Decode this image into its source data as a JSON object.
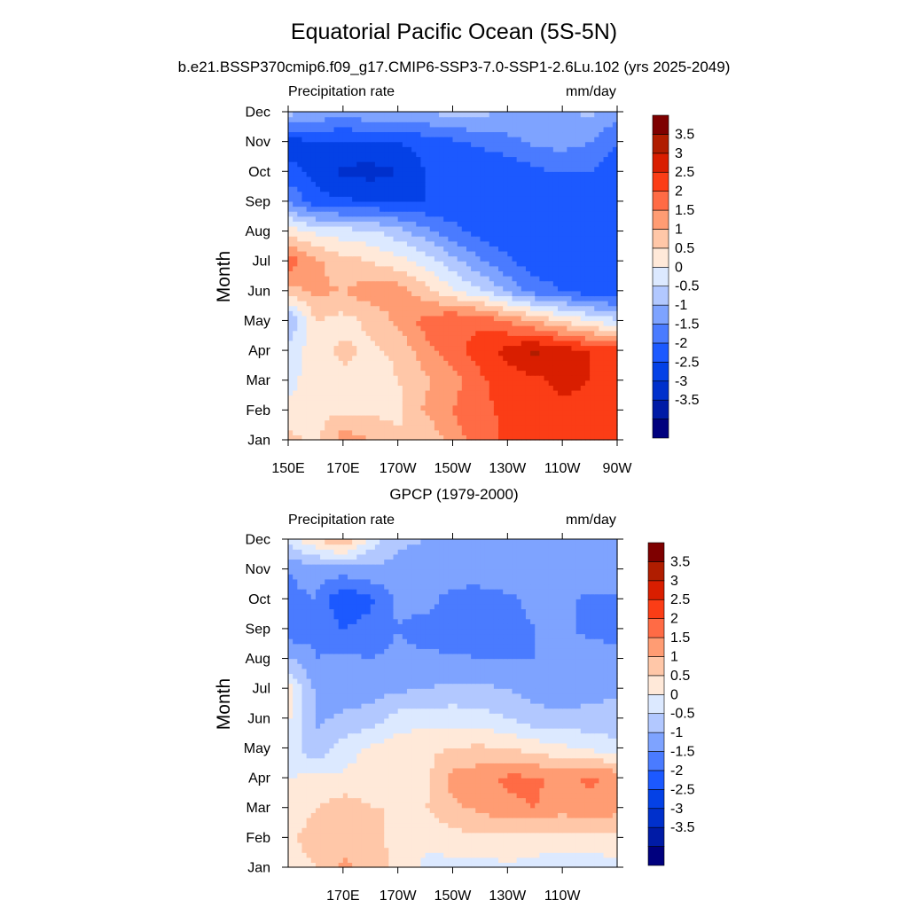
{
  "figure": {
    "title": "Equatorial Pacific Ocean (5S-5N)",
    "subtitle": "b.e21.BSSP370cmip6.f09_g17.CMIP6-SSP3-7.0-SSP1-2.6Lu.102 (yrs 2025-2049)",
    "lower_title": "GPCP (1979-2000)"
  },
  "colors": {
    "levels": [
      "#00007e",
      "#001ba6",
      "#0030cc",
      "#0441e6",
      "#1c59ff",
      "#4a7bff",
      "#7ea3ff",
      "#b2c8ff",
      "#dce9ff",
      "#ffe9d9",
      "#ffc7a8",
      "#ff9c73",
      "#ff6b45",
      "#fb3d16",
      "#d91e00",
      "#b01d00",
      "#7e0000"
    ]
  },
  "chart_data": [
    {
      "type": "heatmap",
      "panel": "top",
      "left_label": "Precipitation rate",
      "right_label": "mm/day",
      "ylabel": "Month",
      "x": [
        150,
        160,
        170,
        180,
        190,
        200,
        210,
        220,
        230,
        240,
        250,
        260,
        270
      ],
      "x_ticks": [
        150,
        170,
        190,
        210,
        230,
        250,
        270
      ],
      "x_tick_labels": [
        "150E",
        "170E",
        "170W",
        "150W",
        "130W",
        "110W",
        "90W"
      ],
      "y_tick_labels": [
        "Jan",
        "Feb",
        "Mar",
        "Apr",
        "May",
        "Jun",
        "Jul",
        "Aug",
        "Sep",
        "Oct",
        "Nov",
        "Dec"
      ],
      "colorbar_labels": [
        "3.5",
        "3",
        "2.5",
        "2",
        "1.5",
        "1",
        "0.5",
        "0",
        "-0.5",
        "-1",
        "-1.5",
        "-2",
        "-2.5",
        "-3",
        "-3.5"
      ],
      "z": [
        [
          1.2,
          0.8,
          1.8,
          1.5,
          1.2,
          1.0,
          1.8,
          2.2,
          2.6,
          2.7,
          2.9,
          3.0,
          2.8
        ],
        [
          0.6,
          0.9,
          0.9,
          0.9,
          0.8,
          1.6,
          2.0,
          2.4,
          2.6,
          2.8,
          2.9,
          2.9,
          2.8
        ],
        [
          0.3,
          0.8,
          0.9,
          0.7,
          1.0,
          1.4,
          1.8,
          2.4,
          2.7,
          2.9,
          3.1,
          3.0,
          2.9
        ],
        [
          0.2,
          0.8,
          1.1,
          0.9,
          1.1,
          1.8,
          2.3,
          2.7,
          3.2,
          3.6,
          3.3,
          3.0,
          2.8
        ],
        [
          -0.6,
          1.0,
          0.8,
          1.1,
          1.6,
          2.2,
          2.5,
          2.4,
          2.0,
          1.5,
          1.0,
          0.5,
          0.1
        ],
        [
          1.3,
          1.6,
          1.5,
          1.8,
          1.8,
          1.2,
          0.6,
          0.1,
          -0.6,
          -1.2,
          -1.5,
          -1.8,
          -1.9
        ],
        [
          2.3,
          1.6,
          1.2,
          1.0,
          0.7,
          0.3,
          -0.3,
          -0.9,
          -1.4,
          -1.8,
          -1.9,
          -1.9,
          -1.9
        ],
        [
          0.8,
          0.4,
          0.2,
          0.1,
          -0.3,
          -0.8,
          -1.3,
          -1.7,
          -1.9,
          -1.9,
          -1.9,
          -1.9,
          -1.9
        ],
        [
          -1.0,
          -1.8,
          -1.9,
          -2.0,
          -2.0,
          -2.0,
          -2.0,
          -1.9,
          -1.9,
          -1.9,
          -1.9,
          -1.9,
          -1.9
        ],
        [
          -1.8,
          -2.2,
          -2.6,
          -2.7,
          -2.5,
          -2.0,
          -2.0,
          -2.0,
          -2.0,
          -1.6,
          -1.5,
          -1.5,
          -2.0
        ],
        [
          -2.3,
          -2.0,
          -2.1,
          -2.0,
          -2.0,
          -1.8,
          -1.6,
          -1.4,
          -1.1,
          -0.9,
          -0.8,
          -1.0,
          -1.5
        ],
        [
          -0.3,
          -0.6,
          -0.8,
          -0.6,
          -0.5,
          -0.5,
          -0.3,
          -0.3,
          -0.7,
          -1.0,
          -0.6,
          -0.4,
          -0.8
        ]
      ]
    },
    {
      "type": "heatmap",
      "panel": "bottom",
      "left_label": "Precipitation rate",
      "right_label": "mm/day",
      "ylabel": "Month",
      "x": [
        150,
        160,
        170,
        180,
        190,
        200,
        210,
        220,
        230,
        240,
        250,
        260,
        270
      ],
      "x_ticks": [
        170,
        190,
        210,
        230,
        250
      ],
      "x_tick_labels": [
        "170E",
        "170W",
        "150W",
        "130W",
        "110W"
      ],
      "y_tick_labels": [
        "Jan",
        "Feb",
        "Mar",
        "Apr",
        "May",
        "Jun",
        "Jul",
        "Aug",
        "Sep",
        "Oct",
        "Nov",
        "Dec"
      ],
      "colorbar_labels": [
        "3.5",
        "3",
        "2.5",
        "2",
        "1.5",
        "1",
        "0.5",
        "0",
        "-0.5",
        "-1",
        "-1.5",
        "-2",
        "-2.5",
        "-3",
        "-3.5"
      ],
      "z": [
        [
          0.8,
          1.0,
          1.6,
          1.4,
          0.8,
          0.4,
          0.3,
          0.3,
          0.4,
          0.3,
          0.2,
          0.2,
          0.3
        ],
        [
          0.9,
          1.2,
          1.3,
          1.2,
          0.8,
          0.6,
          0.8,
          0.9,
          0.9,
          0.8,
          0.8,
          0.9,
          0.8
        ],
        [
          0.7,
          1.0,
          1.3,
          1.0,
          1.0,
          1.0,
          1.4,
          1.6,
          1.9,
          2.0,
          1.7,
          1.8,
          1.7
        ],
        [
          0.5,
          0.6,
          0.6,
          0.8,
          0.6,
          0.8,
          1.7,
          1.8,
          2.1,
          2.1,
          1.8,
          2.1,
          1.9
        ],
        [
          0.4,
          -0.4,
          0.2,
          0.6,
          0.8,
          0.9,
          1.0,
          1.1,
          1.0,
          0.8,
          0.6,
          0.4,
          0.1
        ],
        [
          0.6,
          -0.6,
          -0.4,
          -0.3,
          0.2,
          0.3,
          0.3,
          0.2,
          0.0,
          -0.3,
          -0.4,
          -0.3,
          -0.3
        ],
        [
          0.7,
          -0.6,
          -0.8,
          -0.7,
          -0.6,
          -0.5,
          -0.4,
          -0.4,
          -0.5,
          -0.7,
          -0.8,
          -0.7,
          -0.6
        ],
        [
          -0.4,
          -1.0,
          -0.9,
          -1.0,
          -0.9,
          -0.9,
          -0.9,
          -1.0,
          -1.0,
          -1.0,
          -0.9,
          -0.8,
          -0.8
        ],
        [
          -1.4,
          -1.1,
          -1.5,
          -1.3,
          -1.0,
          -1.2,
          -1.4,
          -1.4,
          -1.1,
          -1.0,
          -0.9,
          -1.1,
          -1.2
        ],
        [
          -1.1,
          -1.0,
          -2.0,
          -1.6,
          -0.9,
          -0.8,
          -1.2,
          -1.3,
          -1.1,
          -0.9,
          -0.9,
          -1.1,
          -1.1
        ],
        [
          -1.0,
          -0.8,
          -0.7,
          -0.6,
          -0.7,
          -0.7,
          -0.7,
          -0.6,
          -0.6,
          -0.5,
          -0.6,
          -0.6,
          -0.6
        ],
        [
          0.2,
          1.0,
          1.6,
          0.3,
          -0.4,
          -0.5,
          -0.5,
          -0.5,
          -0.6,
          -0.6,
          -0.6,
          -0.6,
          -0.6
        ]
      ]
    }
  ]
}
